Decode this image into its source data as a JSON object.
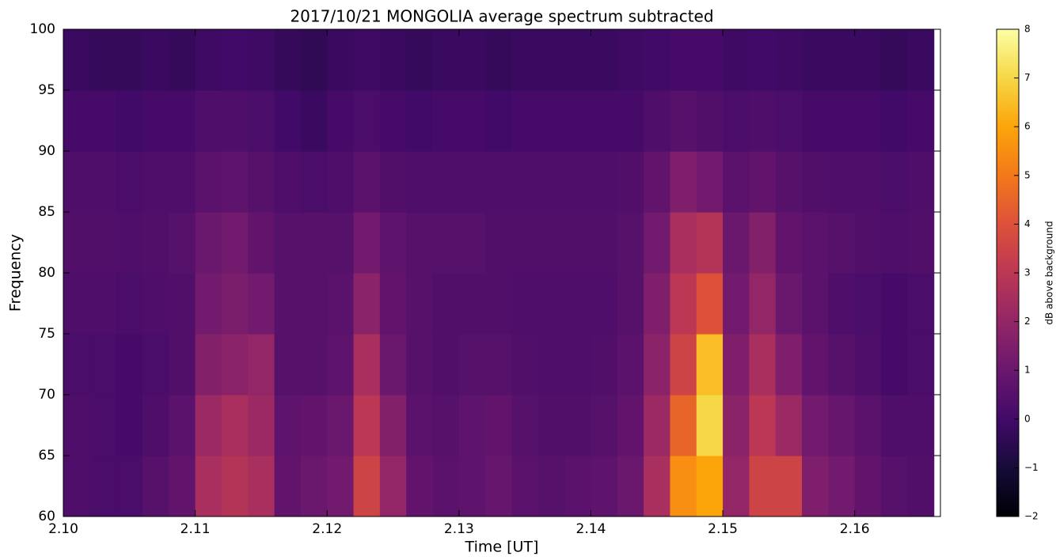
{
  "chart_data": {
    "type": "heatmap",
    "title": "2017/10/21 MONGOLIA average spectrum subtracted",
    "xlabel": "Time [UT]",
    "ylabel": "Frequency",
    "colorbar_label": "dB above background",
    "x": [
      2.101,
      2.103,
      2.105,
      2.107,
      2.109,
      2.111,
      2.113,
      2.115,
      2.117,
      2.119,
      2.121,
      2.123,
      2.125,
      2.127,
      2.129,
      2.131,
      2.133,
      2.135,
      2.137,
      2.139,
      2.141,
      2.143,
      2.145,
      2.147,
      2.149,
      2.151,
      2.153,
      2.155,
      2.157,
      2.159,
      2.161,
      2.163,
      2.165
    ],
    "y": [
      62.5,
      67.5,
      72.5,
      77.5,
      82.5,
      87.5,
      92.5,
      97.5
    ],
    "z": [
      [
        0.3,
        0.2,
        0.2,
        0.5,
        0.8,
        2.5,
        2.8,
        2.5,
        0.8,
        1.0,
        1.2,
        3.5,
        2.0,
        0.8,
        0.6,
        0.7,
        0.9,
        0.6,
        0.5,
        0.6,
        0.7,
        1.0,
        2.5,
        5.5,
        6.0,
        2.0,
        3.5,
        3.5,
        1.5,
        1.2,
        0.8,
        0.5,
        0.4
      ],
      [
        0.3,
        0.2,
        0.1,
        0.3,
        0.6,
        2.2,
        2.5,
        2.2,
        0.7,
        0.8,
        1.0,
        3.0,
        1.6,
        0.6,
        0.5,
        0.7,
        0.8,
        0.5,
        0.4,
        0.4,
        0.5,
        0.8,
        2.2,
        4.5,
        7.0,
        1.8,
        3.0,
        2.2,
        1.2,
        0.9,
        0.6,
        0.3,
        0.3
      ],
      [
        0.2,
        0.2,
        0.1,
        0.2,
        0.4,
        1.6,
        1.8,
        2.0,
        0.5,
        0.5,
        0.7,
        2.5,
        1.0,
        0.5,
        0.4,
        0.5,
        0.5,
        0.4,
        0.3,
        0.3,
        0.4,
        0.6,
        1.8,
        3.5,
        6.5,
        1.5,
        2.5,
        1.5,
        0.8,
        0.5,
        0.3,
        0.1,
        0.2
      ],
      [
        0.3,
        0.3,
        0.2,
        0.3,
        0.4,
        1.2,
        1.4,
        1.2,
        0.5,
        0.5,
        0.6,
        1.8,
        0.8,
        0.5,
        0.4,
        0.4,
        0.4,
        0.3,
        0.3,
        0.3,
        0.3,
        0.5,
        1.5,
        3.0,
        4.0,
        1.2,
        2.0,
        1.0,
        0.6,
        0.3,
        0.2,
        0.1,
        0.2
      ],
      [
        0.4,
        0.4,
        0.3,
        0.4,
        0.5,
        1.0,
        1.2,
        0.8,
        0.5,
        0.5,
        0.5,
        1.2,
        0.7,
        0.5,
        0.5,
        0.5,
        0.4,
        0.4,
        0.4,
        0.4,
        0.4,
        0.5,
        1.2,
        2.5,
        2.8,
        1.0,
        1.6,
        0.8,
        0.6,
        0.5,
        0.4,
        0.3,
        0.4
      ],
      [
        0.3,
        0.3,
        0.2,
        0.3,
        0.3,
        0.6,
        0.7,
        0.5,
        0.3,
        0.2,
        0.3,
        0.6,
        0.4,
        0.3,
        0.3,
        0.3,
        0.3,
        0.3,
        0.3,
        0.3,
        0.3,
        0.4,
        0.8,
        1.5,
        1.2,
        0.6,
        0.8,
        0.5,
        0.4,
        0.3,
        0.3,
        0.2,
        0.3
      ],
      [
        0.1,
        0.1,
        0.0,
        0.1,
        0.1,
        0.3,
        0.3,
        0.2,
        0.0,
        -0.2,
        0.1,
        0.2,
        0.1,
        0.0,
        0.1,
        0.1,
        0.0,
        0.1,
        0.1,
        0.1,
        0.1,
        0.1,
        0.3,
        0.5,
        0.4,
        0.2,
        0.3,
        0.2,
        0.1,
        0.1,
        0.1,
        0.0,
        0.1
      ],
      [
        -0.2,
        -0.3,
        -0.3,
        -0.2,
        -0.3,
        -0.1,
        0.0,
        -0.1,
        -0.3,
        -0.4,
        -0.2,
        -0.1,
        -0.2,
        -0.3,
        -0.2,
        -0.2,
        -0.3,
        -0.2,
        -0.2,
        -0.2,
        -0.2,
        -0.1,
        0.0,
        0.1,
        0.1,
        -0.1,
        0.0,
        -0.1,
        -0.2,
        -0.2,
        -0.2,
        -0.3,
        -0.2
      ]
    ],
    "xlim": [
      2.1,
      2.1665
    ],
    "ylim": [
      60,
      100
    ],
    "zlim": [
      -2,
      8
    ],
    "xticks": [
      {
        "value": 2.1,
        "label": "2.10"
      },
      2.11,
      2.12,
      2.13,
      2.14,
      2.15,
      2.16
    ],
    "yticks": [
      60,
      65,
      70,
      75,
      80,
      85,
      90,
      95,
      100
    ],
    "zticks": [
      {
        "value": -2,
        "label": "−2"
      },
      {
        "value": -1,
        "label": "−1"
      },
      0,
      1,
      2,
      3,
      4,
      5,
      6,
      7,
      8
    ],
    "colormap": [
      "#000004",
      "#160b39",
      "#420a68",
      "#6a176e",
      "#932667",
      "#bc3754",
      "#dd513a",
      "#f37819",
      "#fca50a",
      "#f6d746",
      "#fcffa4"
    ]
  }
}
